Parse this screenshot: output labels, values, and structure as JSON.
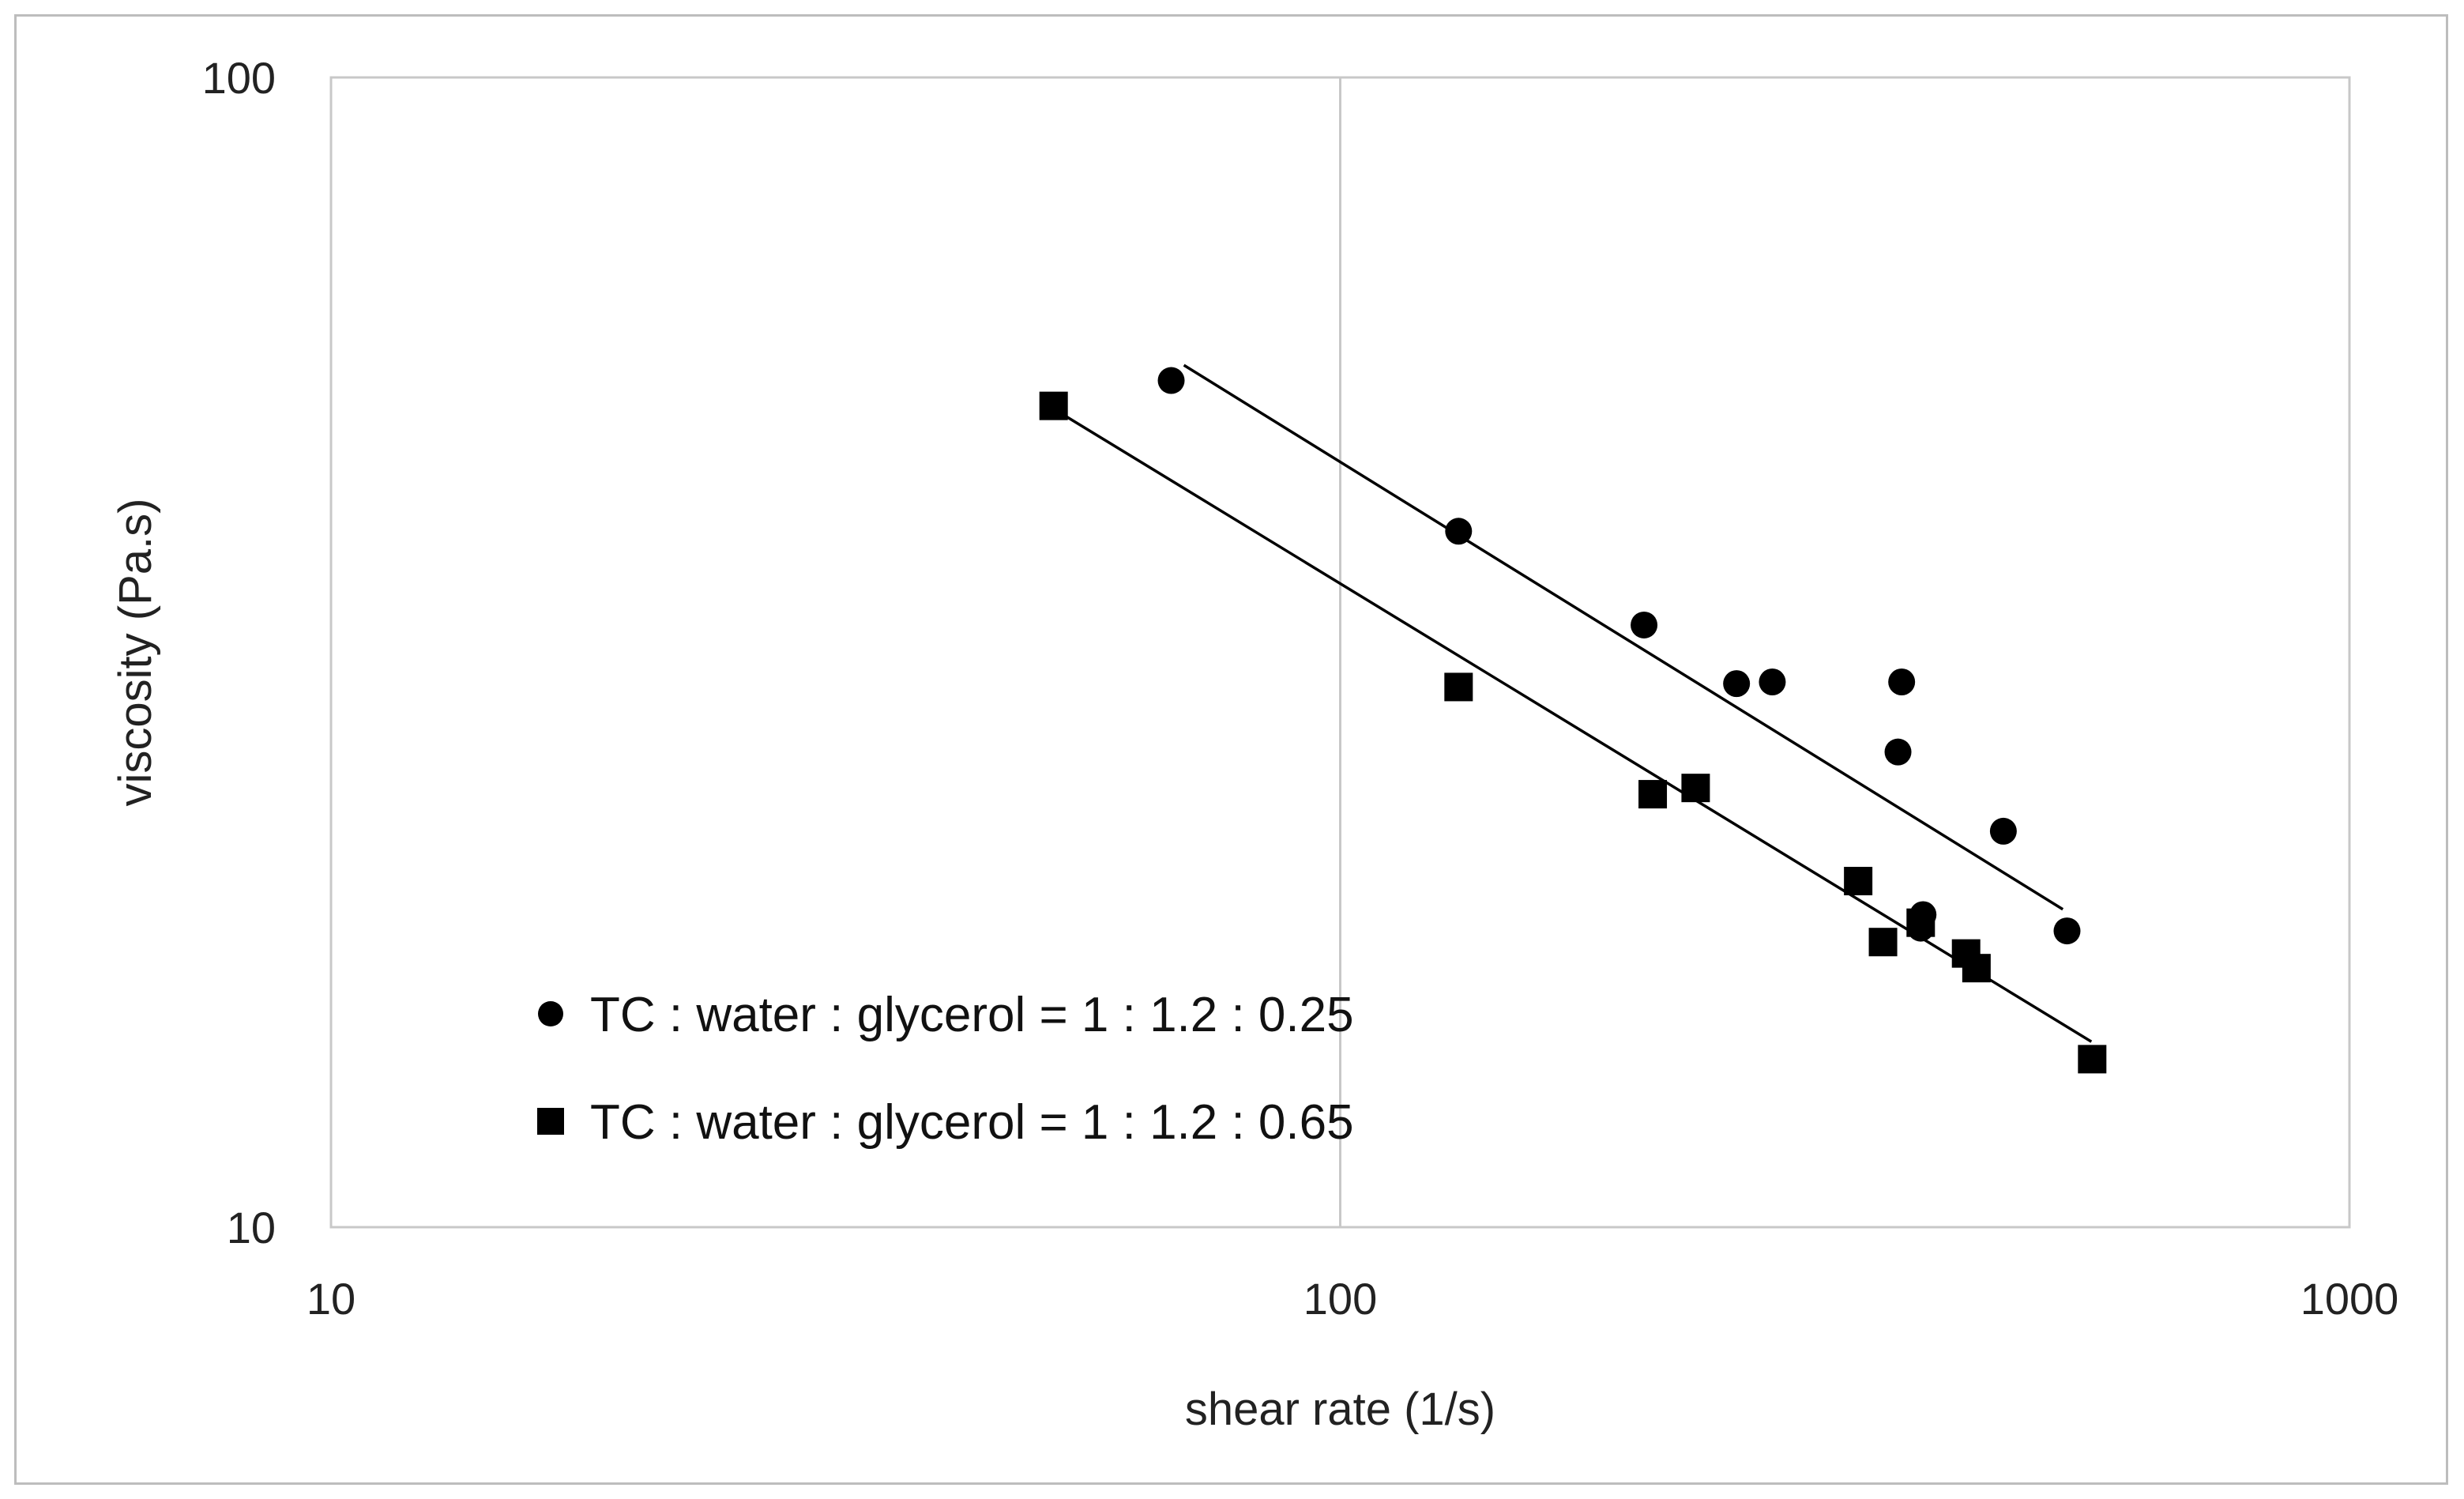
{
  "chart_data": {
    "type": "scatter",
    "title": "",
    "xlabel": "shear rate (1/s)",
    "ylabel": "viscosity  (Pa.s)",
    "xscale": "log",
    "yscale": "log",
    "xlim": [
      10,
      1000
    ],
    "ylim": [
      10,
      100
    ],
    "x_ticks": [
      {
        "value": 10,
        "label": "10"
      },
      {
        "value": 100,
        "label": "100"
      },
      {
        "value": 1000,
        "label": "1000"
      }
    ],
    "y_ticks": [
      {
        "value": 10,
        "label": "10"
      },
      {
        "value": 100,
        "label": "100"
      }
    ],
    "grid": "vertical major gridlines",
    "legend_position": "bottom-left inside plot",
    "series": [
      {
        "name": "TC : water : glycerol = 1 : 1.2 : 0.25",
        "marker": "circle",
        "color": "#000000",
        "points": [
          {
            "x": 68,
            "y": 54.5
          },
          {
            "x": 131,
            "y": 40.3
          },
          {
            "x": 200,
            "y": 33.4
          },
          {
            "x": 247,
            "y": 29.7
          },
          {
            "x": 268,
            "y": 29.8
          },
          {
            "x": 360,
            "y": 29.8
          },
          {
            "x": 357,
            "y": 25.9
          },
          {
            "x": 454,
            "y": 22.1
          },
          {
            "x": 378,
            "y": 18.7
          },
          {
            "x": 376,
            "y": 18.2
          },
          {
            "x": 525,
            "y": 18.1
          }
        ],
        "trendline": {
          "x": [
            70,
            520
          ],
          "y": [
            56.2,
            18.9
          ]
        }
      },
      {
        "name": "TC : water : glycerol = 1 : 1.2 : 0.65",
        "marker": "square",
        "color": "#000000",
        "points": [
          {
            "x": 52,
            "y": 51.8
          },
          {
            "x": 131,
            "y": 29.5
          },
          {
            "x": 204,
            "y": 23.8
          },
          {
            "x": 225,
            "y": 24.1
          },
          {
            "x": 326,
            "y": 20.0
          },
          {
            "x": 345,
            "y": 17.7
          },
          {
            "x": 376,
            "y": 18.4
          },
          {
            "x": 417,
            "y": 17.3
          },
          {
            "x": 427,
            "y": 16.8
          },
          {
            "x": 556,
            "y": 14.0
          }
        ],
        "trendline": {
          "x": [
            52,
            555
          ],
          "y": [
            51.5,
            14.5
          ]
        }
      }
    ]
  }
}
